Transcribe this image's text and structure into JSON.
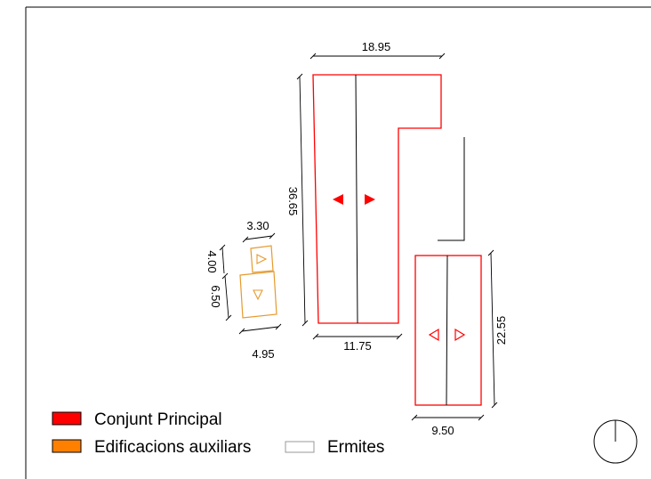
{
  "colors": {
    "main": "#ff0000",
    "auxiliary": "#ff8000",
    "auxiliary_line": "#e69a2e",
    "hermitage": "#ffffff",
    "line": "#000000"
  },
  "dimensions": {
    "main_top": "18.95",
    "main_side": "36.65",
    "main_bottom": "11.75",
    "wing_side": "22.55",
    "wing_bottom": "9.50",
    "aux_top": "3.30",
    "aux_small_side": "4.00",
    "aux_large_side": "6.50",
    "aux_bottom": "4.95"
  },
  "legend": {
    "main": "Conjunt Principal",
    "auxiliary": "Edificacions auxiliars",
    "hermitage": "Ermites"
  },
  "icons": {
    "north": "north-arrow-icon",
    "arrow_left": "arrow-left-icon",
    "arrow_right": "arrow-right-icon",
    "arrow_up": "arrow-up-icon",
    "arrow_down": "arrow-down-icon"
  }
}
